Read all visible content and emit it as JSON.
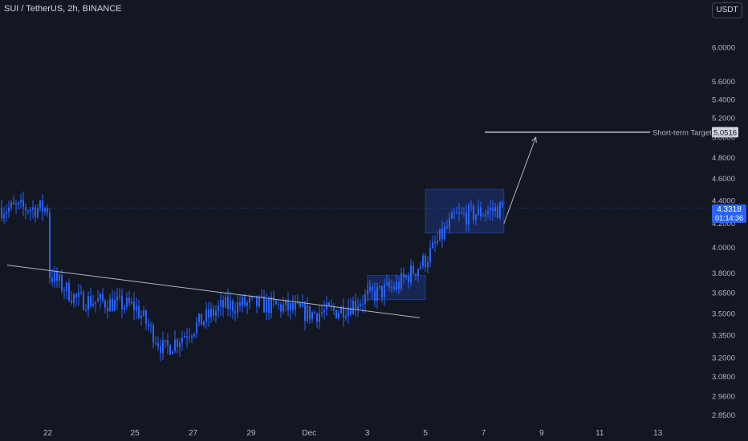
{
  "header": {
    "symbol_title": "SUI / TetherUS, 2h, BINANCE",
    "currency_label": "USDT"
  },
  "price_scale": {
    "ticks": [
      "6.0000",
      "5.6000",
      "5.4000",
      "5.2000",
      "5.0000",
      "4.8000",
      "4.6000",
      "4.4000",
      "4.2000",
      "4.0000",
      "3.8000",
      "3.6500",
      "3.5000",
      "3.3500",
      "3.2000",
      "3.0800",
      "2.9600",
      "2.8500"
    ]
  },
  "time_axis": {
    "labels": [
      "22",
      "25",
      "27",
      "29",
      "Dec",
      "3",
      "5",
      "7",
      "9",
      "11",
      "13"
    ]
  },
  "current_price": {
    "value": "4.3318",
    "countdown": "01:14:36",
    "color": "#2962ff"
  },
  "annotations": {
    "target_label": "Short-term Target",
    "target_value": "5.0516"
  },
  "colors": {
    "background": "#131722",
    "candle": "#2962ff",
    "text": "#b2b5be",
    "line": "#b2b5be",
    "box": "#2962ff"
  },
  "chart_data": {
    "type": "candlestick",
    "symbol": "SUI / TetherUS",
    "interval": "2h",
    "exchange": "BINANCE",
    "y_scale": "log",
    "ylim": [
      2.82,
      6.3
    ],
    "current_price": 4.3318,
    "anchors": [
      [
        "22",
        3.8
      ],
      [
        "23",
        3.6
      ],
      [
        "24",
        3.58
      ],
      [
        "25",
        3.55
      ],
      [
        "26",
        3.25
      ],
      [
        "27",
        3.4
      ],
      [
        "28",
        3.55
      ],
      [
        "29",
        3.57
      ],
      [
        "30",
        3.55
      ],
      [
        "Dec",
        3.5
      ],
      [
        "2",
        3.52
      ],
      [
        "3",
        3.62
      ],
      [
        "4",
        3.7
      ],
      [
        "5",
        3.9
      ],
      [
        "6",
        4.25
      ],
      [
        "7",
        4.3
      ],
      [
        "7.7",
        4.33
      ]
    ],
    "consolidation_zones": [
      {
        "from": "3",
        "to": "5",
        "low": 3.6,
        "high": 3.78
      },
      {
        "from": "5",
        "to": "7.7",
        "low": 4.12,
        "high": 4.5
      }
    ],
    "trendline": {
      "from": [
        "20.6",
        3.86
      ],
      "to": [
        "4.8",
        3.47
      ]
    },
    "target_line": {
      "price": 5.0516,
      "label": "Short-term Target"
    },
    "projection_arrow": {
      "from": [
        "7.7",
        4.2
      ],
      "to": [
        "8.8",
        5.0
      ]
    },
    "grid": false,
    "legend": "none"
  }
}
